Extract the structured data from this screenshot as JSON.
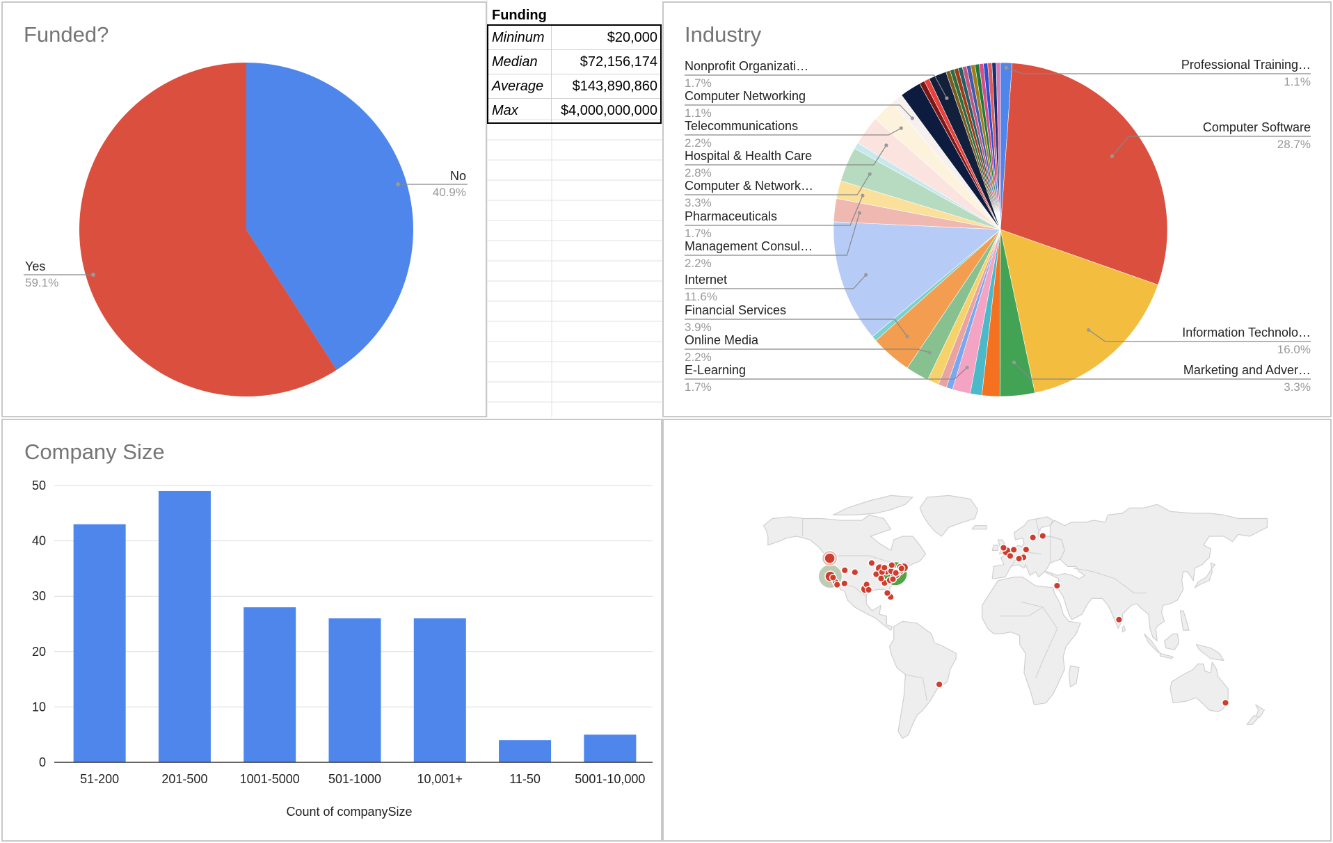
{
  "funding_table": {
    "header": "Funding",
    "rows": [
      {
        "label": "Mininum",
        "value": "$20,000"
      },
      {
        "label": "Median",
        "value": "$72,156,174"
      },
      {
        "label": "Average",
        "value": "$143,890,860"
      },
      {
        "label": "Max",
        "value": "$4,000,000,000"
      }
    ]
  },
  "chart_data": [
    {
      "type": "pie",
      "title": "Funded?",
      "slices": [
        {
          "label": "No",
          "pct": 40.9,
          "pct_label": "40.9%",
          "color": "#4e86ec"
        },
        {
          "label": "Yes",
          "pct": 59.1,
          "pct_label": "59.1%",
          "color": "#db4f3e"
        }
      ]
    },
    {
      "type": "pie",
      "title": "Industry",
      "slices": [
        {
          "label": "Professional Training…",
          "pct": 1.1,
          "pct_label": "1.1%",
          "color": "#4e86ec"
        },
        {
          "label": "Computer Software",
          "pct": 28.7,
          "pct_label": "28.7%",
          "color": "#db4f3e"
        },
        {
          "label": "Information Technolo…",
          "pct": 16.0,
          "pct_label": "16.0%",
          "color": "#f3be40"
        },
        {
          "label": "Marketing and Adver…",
          "pct": 3.3,
          "pct_label": "3.3%",
          "color": "#41a353"
        },
        {
          "label": "",
          "pct": 1.7,
          "pct_label": "",
          "color": "#f4711f"
        },
        {
          "label": "",
          "pct": 1.1,
          "pct_label": "",
          "color": "#4cb9c8"
        },
        {
          "label": "E-Learning",
          "pct": 1.7,
          "pct_label": "1.7%",
          "color": "#f4a3c3"
        },
        {
          "label": "",
          "pct": 0.6,
          "pct_label": "",
          "color": "#7aa7f0"
        },
        {
          "label": "",
          "pct": 0.8,
          "pct_label": "",
          "color": "#e9a3a0"
        },
        {
          "label": "",
          "pct": 1.1,
          "pct_label": "",
          "color": "#f6d36a"
        },
        {
          "label": "Online Media",
          "pct": 2.2,
          "pct_label": "2.2%",
          "color": "#86c18f"
        },
        {
          "label": "Financial Services",
          "pct": 3.9,
          "pct_label": "3.9%",
          "color": "#f29d4f"
        },
        {
          "label": "",
          "pct": 0.5,
          "pct_label": "",
          "color": "#7dd1cd"
        },
        {
          "label": "Internet",
          "pct": 11.6,
          "pct_label": "11.6%",
          "color": "#b6ccf6"
        },
        {
          "label": "Management Consul…",
          "pct": 2.2,
          "pct_label": "2.2%",
          "color": "#efb8b0"
        },
        {
          "label": "Pharmaceuticals",
          "pct": 1.7,
          "pct_label": "1.7%",
          "color": "#fbe09c"
        },
        {
          "label": "Computer & Network…",
          "pct": 3.3,
          "pct_label": "3.3%",
          "color": "#b7dbc0"
        },
        {
          "label": "",
          "pct": 0.6,
          "pct_label": "",
          "color": "#c7e9ee"
        },
        {
          "label": "Hospital & Health Care",
          "pct": 2.8,
          "pct_label": "2.8%",
          "color": "#fbe3e0"
        },
        {
          "label": "Telecommunications",
          "pct": 2.2,
          "pct_label": "2.2%",
          "color": "#fdf3dc"
        },
        {
          "label": "Computer Networking",
          "pct": 1.1,
          "pct_label": "1.1%",
          "color": "#f6f1ee"
        },
        {
          "label": "",
          "pct": 2.0,
          "pct_label": "",
          "color": "#0d1b3e"
        },
        {
          "label": "",
          "pct": 0.5,
          "pct_label": "",
          "color": "#7d1717"
        },
        {
          "label": "",
          "pct": 0.5,
          "pct_label": "",
          "color": "#e8413a"
        },
        {
          "label": "Nonprofit Organizati…",
          "pct": 1.7,
          "pct_label": "1.7%",
          "color": "#13203c"
        },
        {
          "label": "",
          "pct": 0.4,
          "pct_label": "",
          "color": "#7b5b1f"
        },
        {
          "label": "",
          "pct": 0.4,
          "pct_label": "",
          "color": "#2c6e3d"
        },
        {
          "label": "",
          "pct": 0.4,
          "pct_label": "",
          "color": "#a23a17"
        },
        {
          "label": "",
          "pct": 0.4,
          "pct_label": "",
          "color": "#1e5f6a"
        },
        {
          "label": "",
          "pct": 0.4,
          "pct_label": "",
          "color": "#c4567e"
        },
        {
          "label": "",
          "pct": 0.4,
          "pct_label": "",
          "color": "#3e5dab"
        },
        {
          "label": "",
          "pct": 0.4,
          "pct_label": "",
          "color": "#a67d1b"
        },
        {
          "label": "",
          "pct": 0.4,
          "pct_label": "",
          "color": "#1d7a3a"
        },
        {
          "label": "",
          "pct": 0.4,
          "pct_label": "",
          "color": "#d94c8b"
        },
        {
          "label": "",
          "pct": 0.4,
          "pct_label": "",
          "color": "#2b4fd1"
        },
        {
          "label": "",
          "pct": 0.4,
          "pct_label": "",
          "color": "#e05b5b"
        },
        {
          "label": "",
          "pct": 0.4,
          "pct_label": "",
          "color": "#18306f"
        },
        {
          "label": "",
          "pct": 0.4,
          "pct_label": "",
          "color": "#d778b7"
        }
      ]
    },
    {
      "type": "bar",
      "title": "Company Size",
      "xlabel": "Count of companySize",
      "ylabel": "",
      "categories": [
        "51-200",
        "201-500",
        "1001-5000",
        "501-1000",
        "10,001+",
        "11-50",
        "5001-10,000"
      ],
      "values": [
        43,
        49,
        28,
        26,
        26,
        4,
        5
      ],
      "ylim": [
        0,
        50
      ],
      "yticks": [
        0,
        10,
        20,
        30,
        40,
        50
      ],
      "color": "#4e86ec",
      "grid": true
    },
    {
      "type": "map",
      "title": "",
      "marker_color": "#cf3d2e",
      "cluster_colors": [
        "#b7c7ad",
        "#e9b2ab",
        "#3d9a2f"
      ],
      "points": [
        {
          "region": "US Pacific Northwest",
          "lon": -122.3,
          "lat": 47.6,
          "size": "large"
        },
        {
          "region": "US California",
          "lon": -121.9,
          "lat": 37.4,
          "size": "large"
        },
        {
          "region": "US California",
          "lon": -118.2,
          "lat": 34.1,
          "size": "small"
        },
        {
          "region": "US California",
          "lon": -117.2,
          "lat": 32.7,
          "size": "small"
        },
        {
          "region": "US California",
          "lon": -120.0,
          "lat": 36.7,
          "size": "small"
        },
        {
          "region": "US Southwest",
          "lon": -112.1,
          "lat": 33.4,
          "size": "small"
        },
        {
          "region": "US Mountain",
          "lon": -104.9,
          "lat": 39.7,
          "size": "small"
        },
        {
          "region": "US Mountain",
          "lon": -111.9,
          "lat": 40.8,
          "size": "small"
        },
        {
          "region": "US Texas",
          "lon": -97.7,
          "lat": 30.3,
          "size": "medium"
        },
        {
          "region": "US Texas",
          "lon": -96.8,
          "lat": 32.8,
          "size": "small"
        },
        {
          "region": "US Texas",
          "lon": -95.4,
          "lat": 29.8,
          "size": "small"
        },
        {
          "region": "US Midwest",
          "lon": -93.3,
          "lat": 44.9,
          "size": "small"
        },
        {
          "region": "US Midwest",
          "lon": -87.6,
          "lat": 41.9,
          "size": "medium"
        },
        {
          "region": "US Midwest",
          "lon": -90.2,
          "lat": 38.6,
          "size": "small"
        },
        {
          "region": "US Midwest",
          "lon": -83.0,
          "lat": 40.0,
          "size": "small"
        },
        {
          "region": "US Midwest",
          "lon": -86.2,
          "lat": 39.8,
          "size": "small"
        },
        {
          "region": "US Midwest",
          "lon": -84.5,
          "lat": 42.3,
          "size": "small"
        },
        {
          "region": "US Southeast",
          "lon": -84.4,
          "lat": 33.7,
          "size": "small"
        },
        {
          "region": "US Southeast",
          "lon": -80.8,
          "lat": 35.2,
          "size": "small"
        },
        {
          "region": "US Southeast",
          "lon": -86.8,
          "lat": 36.2,
          "size": "small"
        },
        {
          "region": "US Southeast",
          "lon": -80.2,
          "lat": 25.8,
          "size": "small"
        },
        {
          "region": "US Southeast",
          "lon": -82.5,
          "lat": 28.0,
          "size": "small"
        },
        {
          "region": "US Northeast",
          "lon": -77.0,
          "lat": 38.9,
          "size": "large"
        },
        {
          "region": "US Northeast",
          "lon": -74.0,
          "lat": 40.7,
          "size": "medium"
        },
        {
          "region": "US Northeast",
          "lon": -71.1,
          "lat": 42.4,
          "size": "medium"
        },
        {
          "region": "US Northeast",
          "lon": -75.2,
          "lat": 40.0,
          "size": "small"
        },
        {
          "region": "US Northeast",
          "lon": -79.9,
          "lat": 40.4,
          "size": "small"
        },
        {
          "region": "US Northeast",
          "lon": -73.8,
          "lat": 42.7,
          "size": "small"
        },
        {
          "region": "US Northeast",
          "lon": -76.6,
          "lat": 39.3,
          "size": "small"
        },
        {
          "region": "US Northeast",
          "lon": -78.6,
          "lat": 35.8,
          "size": "small"
        },
        {
          "region": "US Northeast",
          "lon": -72.7,
          "lat": 41.8,
          "size": "small"
        },
        {
          "region": "Canada",
          "lon": -79.4,
          "lat": 43.7,
          "size": "small"
        },
        {
          "region": "UK",
          "lon": -0.1,
          "lat": 51.5,
          "size": "medium"
        },
        {
          "region": "UK",
          "lon": -2.2,
          "lat": 53.5,
          "size": "small"
        },
        {
          "region": "Netherlands",
          "lon": 4.9,
          "lat": 52.4,
          "size": "small"
        },
        {
          "region": "Germany",
          "lon": 13.4,
          "lat": 52.5,
          "size": "small"
        },
        {
          "region": "Germany",
          "lon": 11.6,
          "lat": 48.1,
          "size": "small"
        },
        {
          "region": "France",
          "lon": 2.4,
          "lat": 48.9,
          "size": "small"
        },
        {
          "region": "Switzerland",
          "lon": 8.5,
          "lat": 47.4,
          "size": "small"
        },
        {
          "region": "Sweden",
          "lon": 18.1,
          "lat": 59.3,
          "size": "small"
        },
        {
          "region": "Finland",
          "lon": 24.9,
          "lat": 60.2,
          "size": "small"
        },
        {
          "region": "Israel",
          "lon": 34.8,
          "lat": 32.1,
          "size": "small"
        },
        {
          "region": "India",
          "lon": 77.6,
          "lat": 13.0,
          "size": "small"
        },
        {
          "region": "Brazil",
          "lon": -46.6,
          "lat": -23.5,
          "size": "small"
        },
        {
          "region": "Australia",
          "lon": 151.2,
          "lat": -33.9,
          "size": "small"
        }
      ]
    }
  ]
}
